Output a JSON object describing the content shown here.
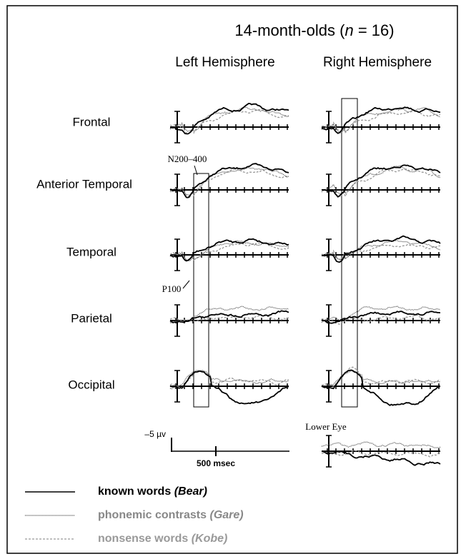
{
  "title": {
    "before": "14-month-olds (",
    "italic": "n",
    "after": " = 16)"
  },
  "columns": [
    "Left Hemisphere",
    "Right Hemisphere"
  ],
  "rows": [
    "Frontal",
    "Anterior Temporal",
    "Temporal",
    "Parietal",
    "Occipital"
  ],
  "annotations": {
    "window": "N200–400",
    "peak": "P100",
    "eye": "Lower Eye"
  },
  "scale": {
    "amplitude": "–5 µv",
    "time": "500 msec"
  },
  "legend": [
    {
      "label": "known words",
      "example": "(Bear)"
    },
    {
      "label": "phonemic contrasts",
      "example": "(Gare)"
    },
    {
      "label": "nonsense words",
      "example": "(Kobe)"
    }
  ]
}
